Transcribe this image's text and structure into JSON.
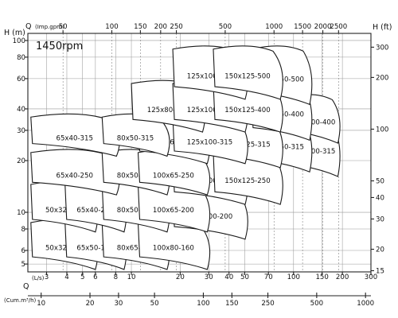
{
  "chart_data": {
    "type": "pump-performance-range",
    "speed_label": "1450rpm",
    "y_left": {
      "label": "H (m)",
      "scale": "log",
      "range": [
        4.5,
        110
      ],
      "ticks": [
        5,
        6,
        8,
        10,
        20,
        30,
        40,
        60,
        80,
        100
      ]
    },
    "y_right": {
      "label": "H (ft)",
      "scale": "log",
      "range": [
        14.8,
        360
      ],
      "ticks": [
        15,
        20,
        30,
        40,
        50,
        100,
        200,
        300
      ]
    },
    "x_top": {
      "label": "Q (Imp.gpm)",
      "prefix": "Q",
      "unit": "(Imp.gpm)",
      "scale": "log",
      "ticks": [
        50,
        100,
        150,
        200,
        250,
        500,
        1000,
        1500,
        2000,
        2500
      ]
    },
    "x_bottom_ls": {
      "prefix": "Q",
      "unit": "(L/s)",
      "scale": "log",
      "range": [
        2.3,
        300
      ],
      "ticks": [
        3,
        4,
        5,
        6,
        8,
        10,
        20,
        30,
        40,
        50,
        70,
        100,
        150,
        200,
        300
      ]
    },
    "x_bottom_m3h": {
      "unit": "(Cum.m³/h)",
      "scale": "log",
      "ticks": [
        10,
        20,
        30,
        50,
        100,
        150,
        250,
        500,
        1000
      ]
    },
    "grid": true,
    "models": [
      {
        "label": "50x32-160",
        "q_ls": [
          2.4,
          6.5
        ],
        "h_m": [
          4.6,
          9.0
        ]
      },
      {
        "label": "65x50-160",
        "q_ls": [
          3.9,
          9.7
        ],
        "h_m": [
          4.6,
          9.0
        ]
      },
      {
        "label": "80x65-160",
        "q_ls": [
          6.6,
          18
        ],
        "h_m": [
          4.6,
          9.0
        ]
      },
      {
        "label": "100x80-160",
        "q_ls": [
          11,
          32
        ],
        "h_m": [
          4.6,
          9.0
        ]
      },
      {
        "label": "50x32-200",
        "q_ls": [
          2.4,
          6.5
        ],
        "h_m": [
          7.6,
          15
        ]
      },
      {
        "label": "65x40-200",
        "q_ls": [
          3.9,
          9.7
        ],
        "h_m": [
          7.6,
          15
        ]
      },
      {
        "label": "80x50-200",
        "q_ls": [
          6.6,
          18
        ],
        "h_m": [
          7.6,
          15
        ]
      },
      {
        "label": "100x65-200",
        "q_ls": [
          11,
          32
        ],
        "h_m": [
          7.6,
          15
        ]
      },
      {
        "label": "125x100-200",
        "q_ls": [
          18,
          55
        ],
        "h_m": [
          6.9,
          14
        ]
      },
      {
        "label": "65x40-250",
        "q_ls": [
          2.4,
          9.0
        ],
        "h_m": [
          12.5,
          23
        ]
      },
      {
        "label": "80x50-250",
        "q_ls": [
          6.6,
          18
        ],
        "h_m": [
          12.5,
          23
        ]
      },
      {
        "label": "100x65-250",
        "q_ls": [
          11,
          32
        ],
        "h_m": [
          12.5,
          23
        ]
      },
      {
        "label": "125x100-250",
        "q_ls": [
          18,
          55
        ],
        "h_m": [
          11,
          23
        ]
      },
      {
        "label": "150x125-250",
        "q_ls": [
          32,
          90
        ],
        "h_m": [
          11,
          23
        ]
      },
      {
        "label": "65x40-315",
        "q_ls": [
          2.4,
          9.0
        ],
        "h_m": [
          21,
          37
        ]
      },
      {
        "label": "80x50-315",
        "q_ls": [
          6.6,
          18
        ],
        "h_m": [
          21,
          37
        ]
      },
      {
        "label": "100x65-315",
        "q_ls": [
          11,
          32
        ],
        "h_m": [
          19,
          37
        ]
      },
      {
        "label": "125x100-315",
        "q_ls": [
          18,
          55
        ],
        "h_m": [
          19,
          37
        ]
      },
      {
        "label": "150x125-315",
        "q_ls": [
          32,
          90
        ],
        "h_m": [
          18,
          37
        ]
      },
      {
        "label": "200x150-315",
        "q_ls": [
          55,
          135
        ],
        "h_m": [
          17,
          37
        ]
      },
      {
        "label": "250x200-315",
        "q_ls": [
          90,
          200
        ],
        "h_m": [
          16,
          35
        ]
      },
      {
        "label": "125x80-400",
        "q_ls": [
          10,
          30
        ],
        "h_m": [
          29,
          58
        ]
      },
      {
        "label": "125x100-400",
        "q_ls": [
          18,
          55
        ],
        "h_m": [
          29,
          58
        ]
      },
      {
        "label": "150x125-400",
        "q_ls": [
          32,
          90
        ],
        "h_m": [
          29,
          58
        ]
      },
      {
        "label": "200x150-400",
        "q_ls": [
          55,
          135
        ],
        "h_m": [
          26,
          58
        ]
      },
      {
        "label": "250x200-400",
        "q_ls": [
          90,
          200
        ],
        "h_m": [
          25,
          48
        ]
      },
      {
        "label": "125x100-500",
        "q_ls": [
          18,
          55
        ],
        "h_m": [
          45,
          92
        ]
      },
      {
        "label": "150x125-500",
        "q_ls": [
          32,
          90
        ],
        "h_m": [
          45,
          92
        ]
      },
      {
        "label": "200x150-500",
        "q_ls": [
          55,
          135
        ],
        "h_m": [
          42,
          92
        ]
      }
    ]
  }
}
